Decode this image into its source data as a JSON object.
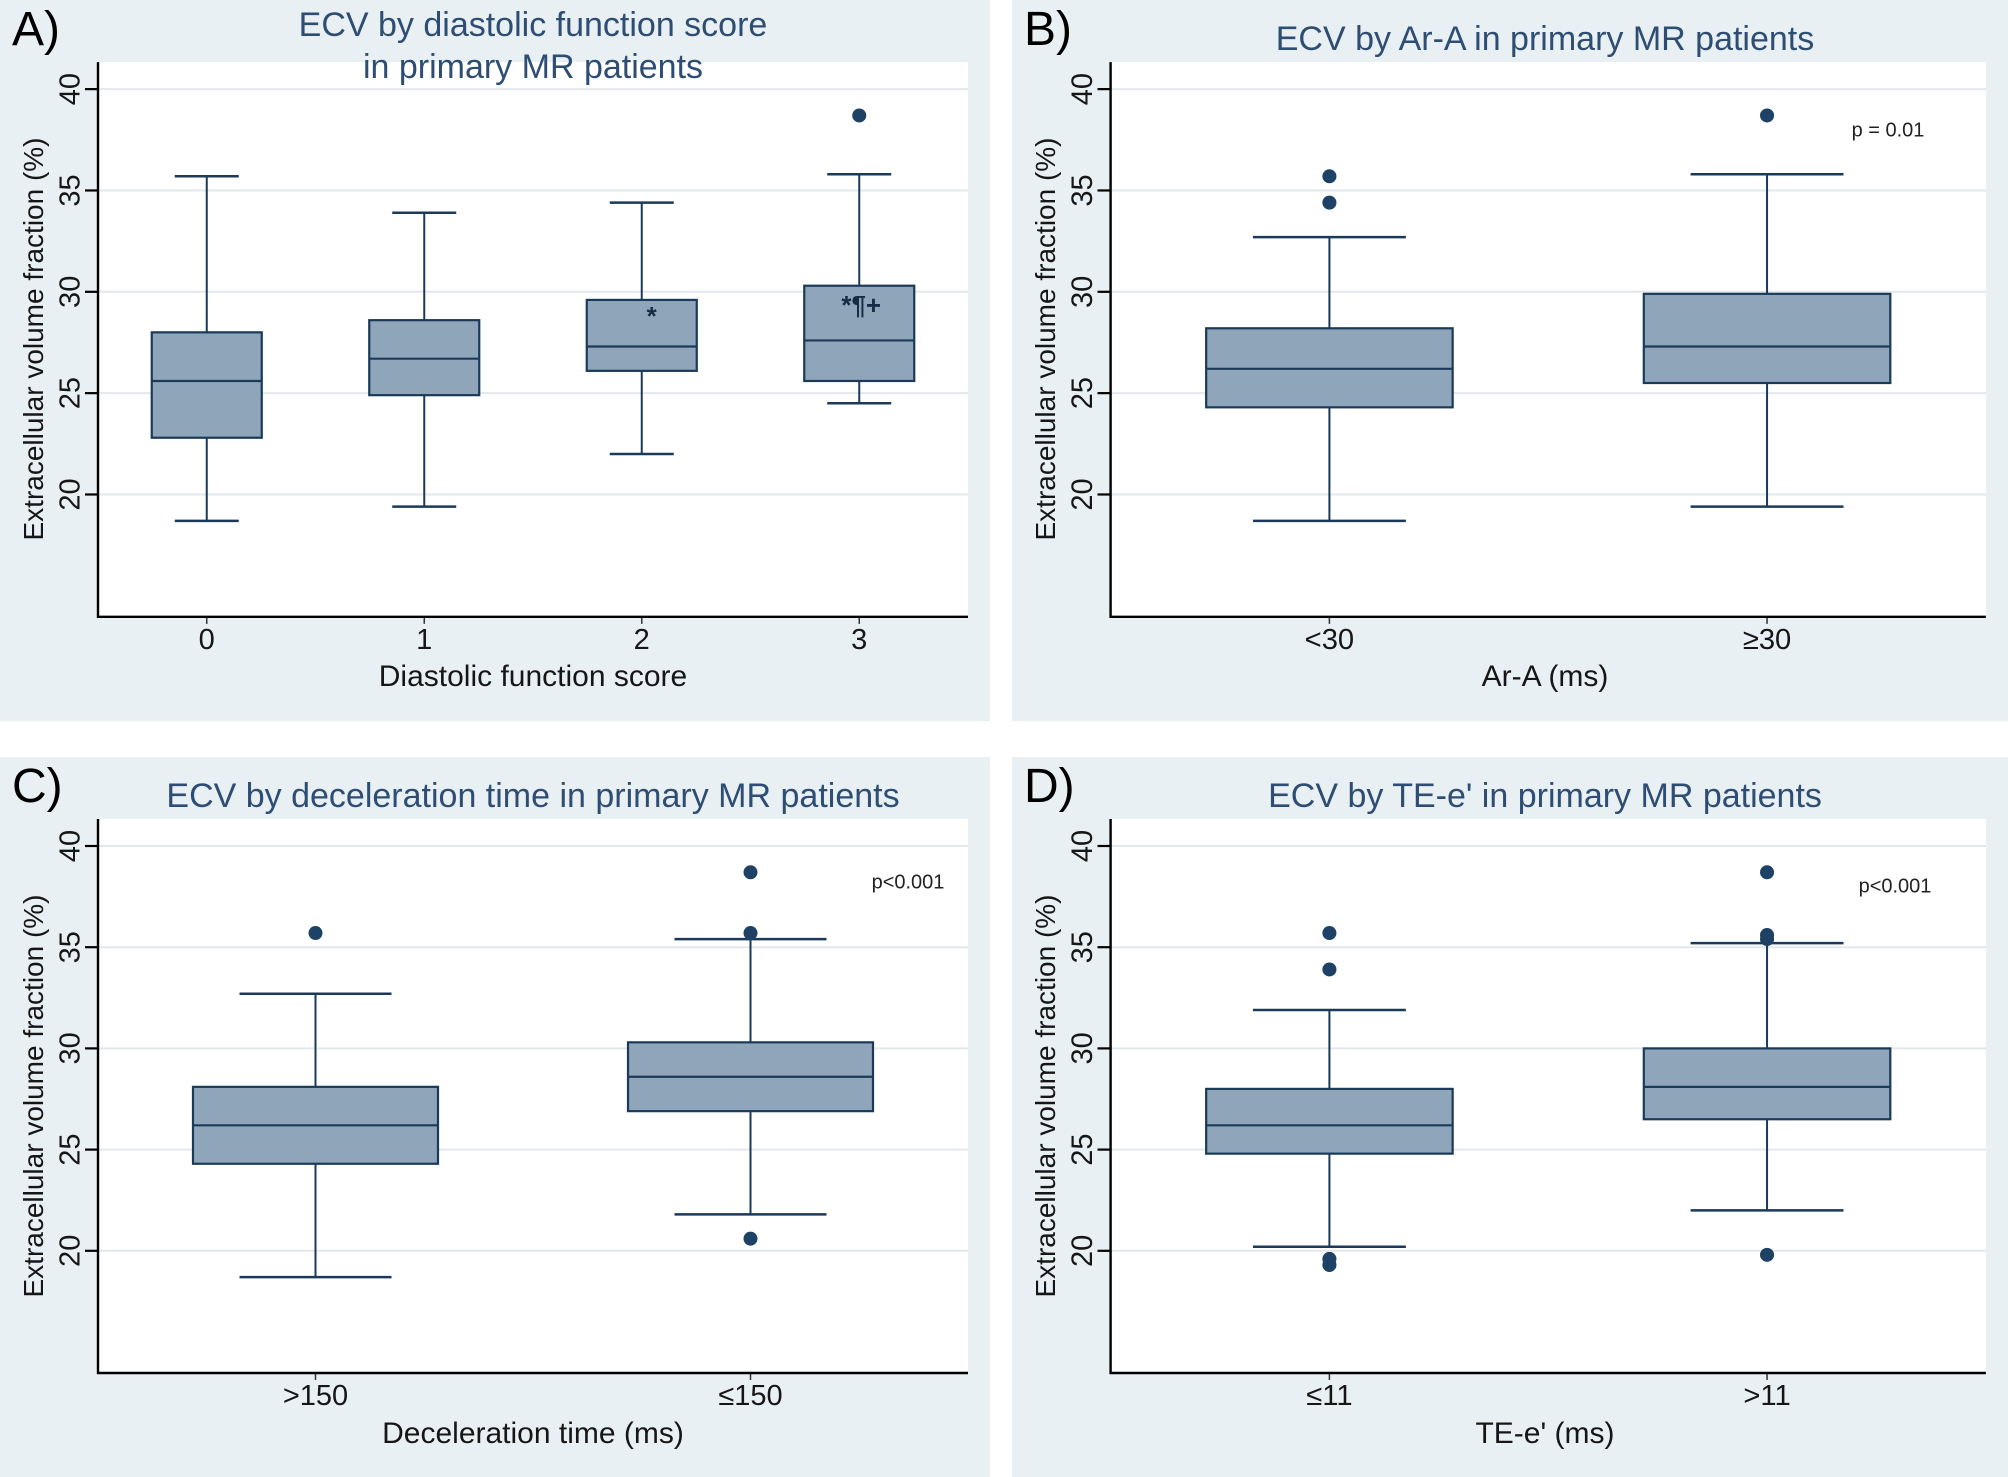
{
  "figure": {
    "kind": "2x2 box plot figure",
    "panels": 4
  },
  "colors": {
    "panel_bg": "#e9f0f4",
    "plot_bg": "#ffffff",
    "grid": "#e3e8ec",
    "box_fill": "#8fa6ba",
    "box_stroke": "#1b3a5a",
    "median_stroke": "#1b3a5a",
    "dot": "#1d4266",
    "axis": "#000000",
    "title": "#2e4d73",
    "text": "#161616",
    "annotation": "#142c44"
  },
  "chart_data": [
    {
      "type": "box",
      "panel_label": "A)",
      "title_lines": [
        "ECV by diastolic function score",
        "in primary MR patients"
      ],
      "xlabel": "Diastolic function score",
      "ylabel": "Extracellular volume fraction (%)",
      "yticks": [
        20,
        25,
        30,
        35,
        40
      ],
      "ylim": [
        14,
        41.3
      ],
      "grid": true,
      "legend": "none",
      "categories": [
        "0",
        "1",
        "2",
        "3"
      ],
      "boxes": [
        {
          "category": "0",
          "whisker_low": 18.7,
          "q1": 22.8,
          "median": 25.6,
          "q3": 28.0,
          "whisker_high": 35.7,
          "outliers": []
        },
        {
          "category": "1",
          "whisker_low": 19.4,
          "q1": 24.9,
          "median": 26.7,
          "q3": 28.6,
          "whisker_high": 33.9,
          "outliers": []
        },
        {
          "category": "2",
          "whisker_low": 22.0,
          "q1": 26.1,
          "median": 27.3,
          "q3": 29.6,
          "whisker_high": 34.4,
          "outliers": [],
          "annotation": {
            "text": "*",
            "value": 28.7,
            "x_offset": 10
          }
        },
        {
          "category": "3",
          "whisker_low": 24.5,
          "q1": 25.6,
          "median": 27.6,
          "q3": 30.3,
          "whisker_high": 35.8,
          "outliers": [
            38.7
          ],
          "annotation": {
            "text": "*¶+",
            "value": 29.25,
            "x_offset": 2
          }
        }
      ],
      "p_label": ""
    },
    {
      "type": "box",
      "panel_label": "B)",
      "title_lines": [
        "ECV by Ar-A in primary MR patients"
      ],
      "xlabel": "Ar-A (ms)",
      "ylabel": "Extracellular volume fraction (%)",
      "yticks": [
        20,
        25,
        30,
        35,
        40
      ],
      "ylim": [
        14,
        41.3
      ],
      "grid": true,
      "legend": "none",
      "categories": [
        "<30",
        "≥30"
      ],
      "boxes": [
        {
          "category": "<30",
          "whisker_low": 18.7,
          "q1": 24.3,
          "median": 26.2,
          "q3": 28.2,
          "whisker_high": 32.7,
          "outliers": [
            34.4,
            35.7
          ]
        },
        {
          "category": "≥30",
          "whisker_low": 19.4,
          "q1": 25.5,
          "median": 27.3,
          "q3": 29.9,
          "whisker_high": 35.8,
          "outliers": [
            38.7
          ]
        }
      ],
      "p_label": "p = 0.01"
    },
    {
      "type": "box",
      "panel_label": "C)",
      "title_lines": [
        "ECV by deceleration time in primary MR patients"
      ],
      "xlabel": "Deceleration time (ms)",
      "ylabel": "Extracellular volume fraction (%)",
      "yticks": [
        20,
        25,
        30,
        35,
        40
      ],
      "ylim": [
        14,
        41.3
      ],
      "grid": true,
      "legend": "none",
      "categories": [
        ">150",
        "≤150"
      ],
      "boxes": [
        {
          "category": ">150",
          "whisker_low": 18.7,
          "q1": 24.3,
          "median": 26.2,
          "q3": 28.1,
          "whisker_high": 32.7,
          "outliers": [
            35.7
          ]
        },
        {
          "category": "≤150",
          "whisker_low": 21.8,
          "q1": 26.9,
          "median": 28.6,
          "q3": 30.3,
          "whisker_high": 35.4,
          "outliers": [
            20.6,
            35.7,
            38.7
          ]
        }
      ],
      "p_label": "p<0.001"
    },
    {
      "type": "box",
      "panel_label": "D)",
      "title_lines": [
        "ECV by TE-e' in primary MR patients"
      ],
      "xlabel": "TE-e' (ms)",
      "ylabel": "Extracellular volume fraction (%)",
      "yticks": [
        20,
        25,
        30,
        35,
        40
      ],
      "ylim": [
        14,
        41.3
      ],
      "grid": true,
      "legend": "none",
      "categories": [
        "≤11",
        ">11"
      ],
      "boxes": [
        {
          "category": "≤11",
          "whisker_low": 20.2,
          "q1": 24.8,
          "median": 26.2,
          "q3": 28.0,
          "whisker_high": 31.9,
          "outliers": [
            19.3,
            19.6,
            33.9,
            35.7
          ]
        },
        {
          "category": ">11",
          "whisker_low": 22.0,
          "q1": 26.5,
          "median": 28.1,
          "q3": 30.0,
          "whisker_high": 35.2,
          "outliers": [
            19.8,
            35.4,
            35.6,
            38.7
          ]
        }
      ],
      "p_label": "p<0.001"
    }
  ]
}
